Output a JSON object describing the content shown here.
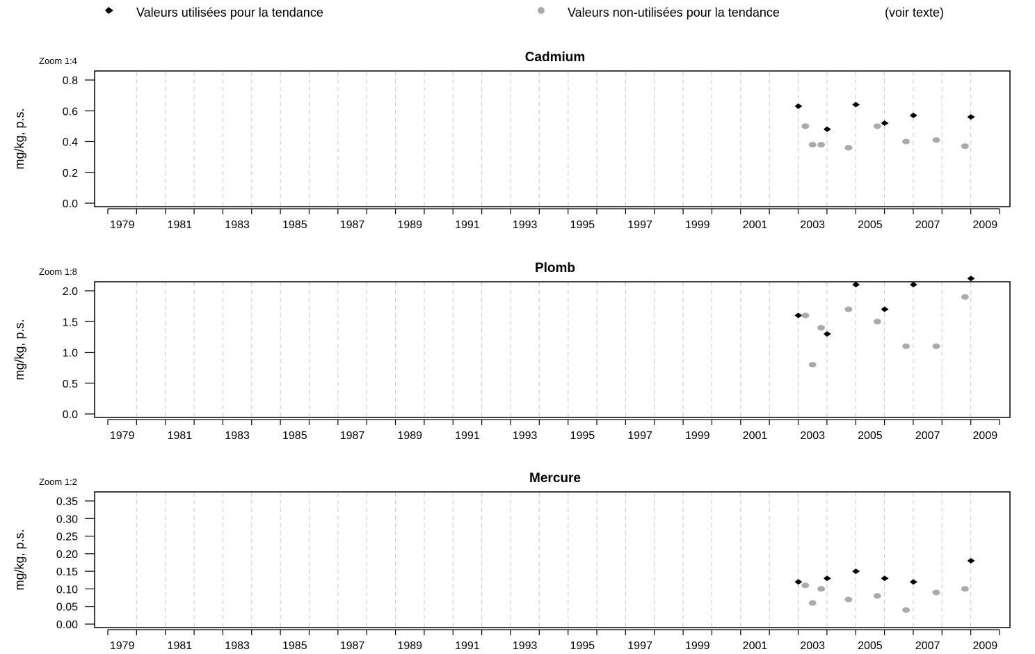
{
  "legend": {
    "used_label": "Valeurs utilisées pour la tendance",
    "unused_label": "Valeurs non-utilisées pour la tendance",
    "note": "(voir texte)",
    "used_color": "#000000",
    "unused_color": "#aaaaaa"
  },
  "chart_data": [
    {
      "type": "scatter",
      "title": "Cadmium",
      "zoom_label": "Zoom 1:4",
      "ylabel": "mg/kg, p.s.",
      "xlabel": "",
      "xlim": [
        1978,
        2009
      ],
      "ylim": [
        0,
        0.8
      ],
      "y_ticks": [
        "0.0",
        "0.2",
        "0.4",
        "0.6",
        "0.8"
      ],
      "x_ticks": [
        "1979",
        "1981",
        "1983",
        "1985",
        "1987",
        "1989",
        "1991",
        "1993",
        "1995",
        "1997",
        "1999",
        "2001",
        "2003",
        "2005",
        "2007",
        "2009"
      ],
      "grid": "vertical dashed",
      "series": [
        {
          "name": "Valeurs utilisées pour la tendance",
          "color": "#000000",
          "points": [
            [
              2002.0,
              0.63
            ],
            [
              2003.0,
              0.48
            ],
            [
              2004.0,
              0.64
            ],
            [
              2005.0,
              0.52
            ],
            [
              2006.0,
              0.57
            ],
            [
              2008.0,
              0.56
            ]
          ]
        },
        {
          "name": "Valeurs non-utilisées pour la tendance",
          "color": "#aaaaaa",
          "points": [
            [
              2002.25,
              0.5
            ],
            [
              2002.5,
              0.38
            ],
            [
              2002.8,
              0.38
            ],
            [
              2003.75,
              0.36
            ],
            [
              2004.75,
              0.5
            ],
            [
              2005.75,
              0.4
            ],
            [
              2006.8,
              0.41
            ],
            [
              2007.8,
              0.37
            ]
          ]
        }
      ]
    },
    {
      "type": "scatter",
      "title": "Plomb",
      "zoom_label": "Zoom 1:8",
      "ylabel": "mg/kg, p.s.",
      "xlabel": "",
      "xlim": [
        1978,
        2009
      ],
      "ylim": [
        0,
        2.0
      ],
      "y_ticks": [
        "0.0",
        "0.5",
        "1.0",
        "1.5",
        "2.0"
      ],
      "x_ticks": [
        "1979",
        "1981",
        "1983",
        "1985",
        "1987",
        "1989",
        "1991",
        "1993",
        "1995",
        "1997",
        "1999",
        "2001",
        "2003",
        "2005",
        "2007",
        "2009"
      ],
      "grid": "vertical dashed",
      "series": [
        {
          "name": "Valeurs utilisées pour la tendance",
          "color": "#000000",
          "points": [
            [
              2002.0,
              1.6
            ],
            [
              2003.0,
              1.3
            ],
            [
              2004.0,
              2.1
            ],
            [
              2005.0,
              1.7
            ],
            [
              2006.0,
              2.1
            ],
            [
              2008.0,
              2.2
            ]
          ]
        },
        {
          "name": "Valeurs non-utilisées pour la tendance",
          "color": "#aaaaaa",
          "points": [
            [
              2002.25,
              1.6
            ],
            [
              2002.5,
              0.8
            ],
            [
              2002.8,
              1.4
            ],
            [
              2003.75,
              1.7
            ],
            [
              2004.75,
              1.5
            ],
            [
              2005.75,
              1.1
            ],
            [
              2006.8,
              1.1
            ],
            [
              2007.8,
              1.9
            ]
          ]
        }
      ]
    },
    {
      "type": "scatter",
      "title": "Mercure",
      "zoom_label": "Zoom 1:2",
      "ylabel": "mg/kg, p.s.",
      "xlabel": "",
      "xlim": [
        1978,
        2009
      ],
      "ylim": [
        0,
        0.35
      ],
      "y_ticks": [
        "0.00",
        "0.05",
        "0.10",
        "0.15",
        "0.20",
        "0.25",
        "0.30",
        "0.35"
      ],
      "x_ticks": [
        "1979",
        "1981",
        "1983",
        "1985",
        "1987",
        "1989",
        "1991",
        "1993",
        "1995",
        "1997",
        "1999",
        "2001",
        "2003",
        "2005",
        "2007",
        "2009"
      ],
      "grid": "vertical dashed",
      "series": [
        {
          "name": "Valeurs utilisées pour la tendance",
          "color": "#000000",
          "points": [
            [
              2002.0,
              0.12
            ],
            [
              2003.0,
              0.13
            ],
            [
              2004.0,
              0.15
            ],
            [
              2005.0,
              0.13
            ],
            [
              2006.0,
              0.12
            ],
            [
              2008.0,
              0.18
            ]
          ]
        },
        {
          "name": "Valeurs non-utilisées pour la tendance",
          "color": "#aaaaaa",
          "points": [
            [
              2002.25,
              0.11
            ],
            [
              2002.5,
              0.06
            ],
            [
              2002.8,
              0.1
            ],
            [
              2003.75,
              0.07
            ],
            [
              2004.75,
              0.08
            ],
            [
              2005.75,
              0.04
            ],
            [
              2006.8,
              0.09
            ],
            [
              2007.8,
              0.1
            ]
          ]
        }
      ]
    }
  ]
}
